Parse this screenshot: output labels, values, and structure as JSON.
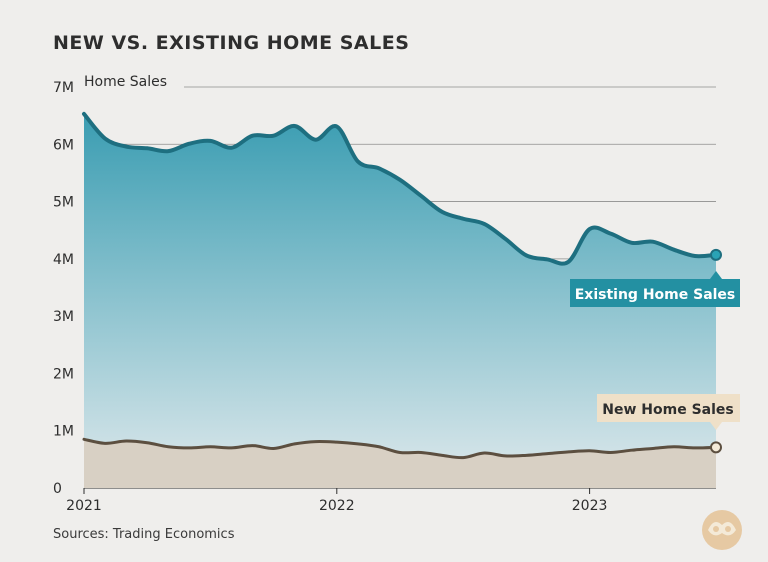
{
  "title": "NEW VS. EXISTING HOME SALES",
  "source": "Sources: Trading Economics",
  "ylabel_unit": "Home Sales",
  "colors": {
    "existing_line": "#1e6f80",
    "existing_fill_top": "#3a9db2",
    "existing_fill_bottom": "#dfe9ec",
    "new_line": "#5c4f40",
    "new_fill": "#d8d0c4",
    "existing_label_bg": "#2390a2",
    "new_label_bg": "#efe0c8"
  },
  "chart_data": {
    "type": "area",
    "title": "NEW VS. EXISTING HOME SALES",
    "xlabel": "",
    "ylabel": "Home Sales",
    "ylim": [
      0,
      7000000
    ],
    "y_ticks": [
      "0",
      "1M",
      "2M",
      "3M",
      "4M",
      "5M",
      "6M",
      "7M"
    ],
    "x_ticks": [
      "2021",
      "2022",
      "2023"
    ],
    "x": [
      "2021-01",
      "2021-02",
      "2021-03",
      "2021-04",
      "2021-05",
      "2021-06",
      "2021-07",
      "2021-08",
      "2021-09",
      "2021-10",
      "2021-11",
      "2021-12",
      "2022-01",
      "2022-02",
      "2022-03",
      "2022-04",
      "2022-05",
      "2022-06",
      "2022-07",
      "2022-08",
      "2022-09",
      "2022-10",
      "2022-11",
      "2022-12",
      "2023-01",
      "2023-02",
      "2023-03",
      "2023-04",
      "2023-05",
      "2023-06",
      "2023-07"
    ],
    "series": [
      {
        "name": "Existing Home Sales",
        "values": [
          6530000,
          6100000,
          5960000,
          5930000,
          5880000,
          6010000,
          6060000,
          5940000,
          6150000,
          6150000,
          6320000,
          6080000,
          6310000,
          5700000,
          5580000,
          5380000,
          5100000,
          4820000,
          4700000,
          4610000,
          4350000,
          4060000,
          3990000,
          3950000,
          4520000,
          4440000,
          4280000,
          4300000,
          4160000,
          4050000,
          4070000
        ]
      },
      {
        "name": "New Home Sales",
        "values": [
          850000,
          780000,
          820000,
          790000,
          720000,
          700000,
          720000,
          700000,
          740000,
          690000,
          770000,
          810000,
          800000,
          770000,
          720000,
          620000,
          620000,
          570000,
          530000,
          610000,
          560000,
          570000,
          600000,
          630000,
          650000,
          620000,
          660000,
          690000,
          720000,
          700000,
          710000
        ]
      }
    ]
  }
}
